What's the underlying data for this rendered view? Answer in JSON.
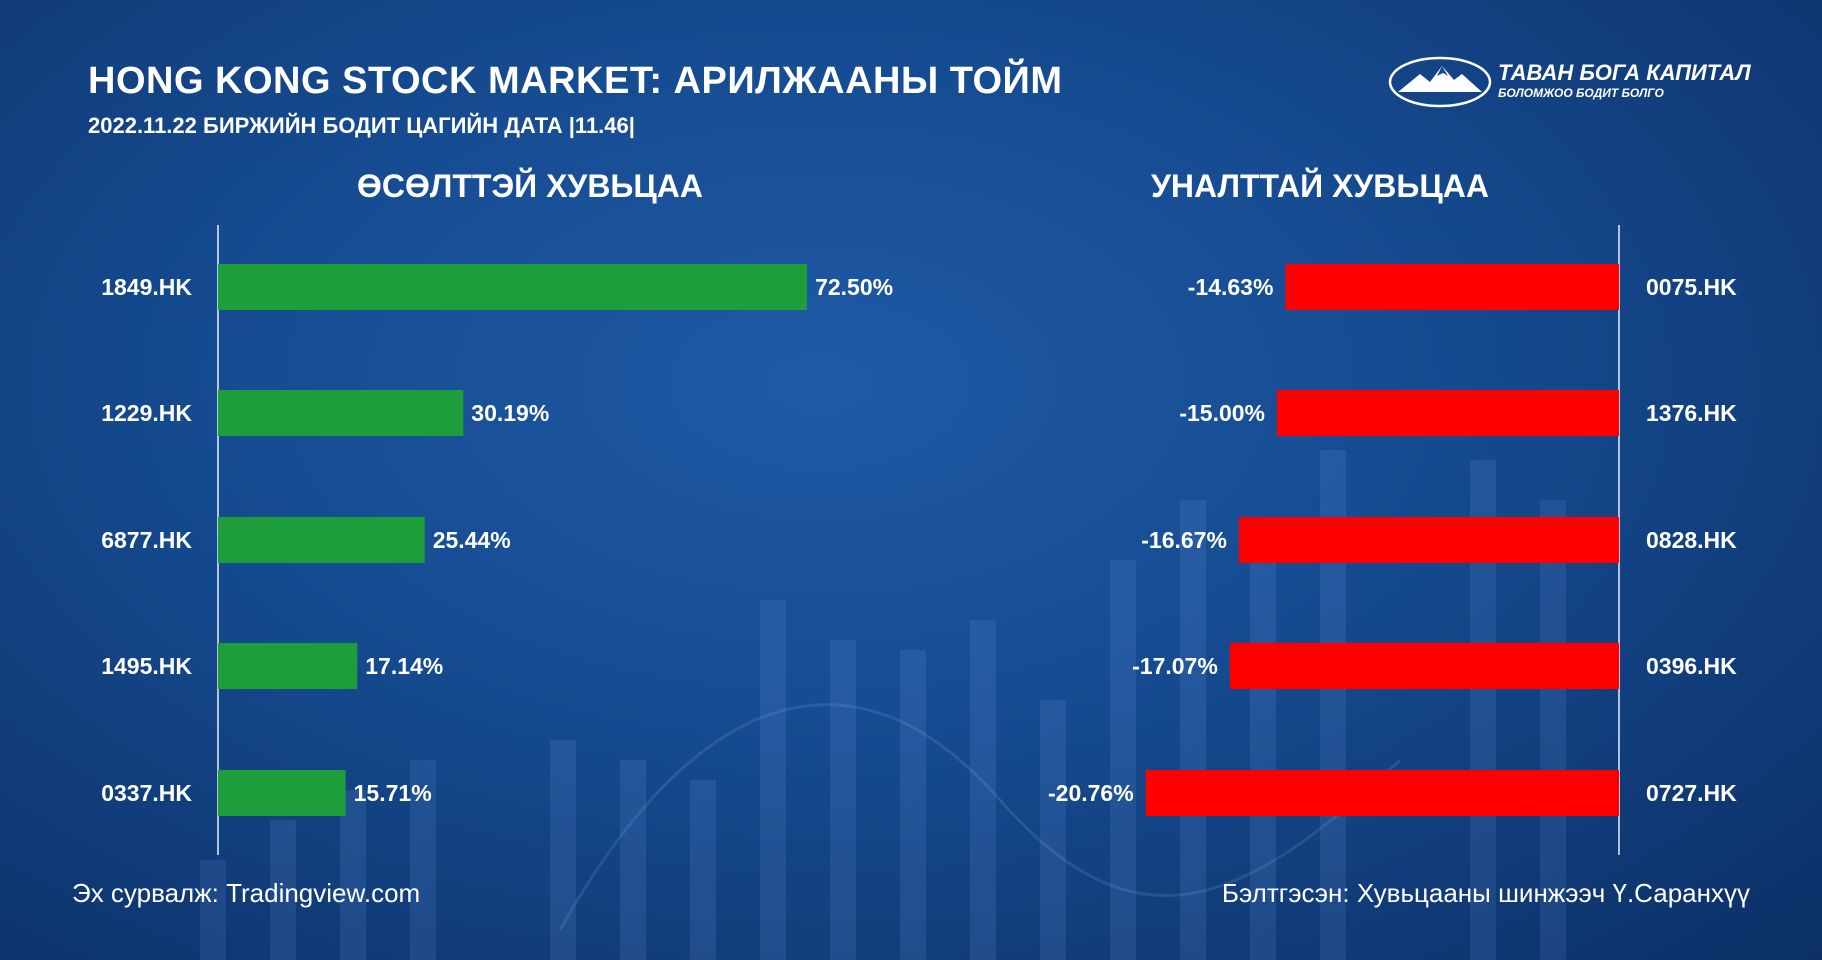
{
  "title": "HONG KONG STOCK MARKET: АРИЛЖААНЫ ТОЙМ",
  "subtitle": "2022.11.22 БИРЖИЙН БОДИТ ЦАГИЙН ДАТА |11.46|",
  "logo": {
    "name": "ТАВАН БОГА КАПИТАЛ",
    "tagline": "БОЛОМЖОО БОДИТ БОЛГО",
    "icon": "mountain-emblem-icon"
  },
  "footer": {
    "source": "Эх сурвалж: Tradingview.com",
    "prepared": "Бэлтгэсэн: Хувьцааны шинжээч Ү.Саранхүү"
  },
  "colors": {
    "gain": "#1e9e3a",
    "loss": "#ff0000",
    "background": "#154a8f"
  },
  "chart_data": [
    {
      "type": "bar",
      "orientation": "horizontal",
      "title": "ӨСӨЛТТЭЙ ХУВЬЦАА",
      "categories": [
        "1849.HK",
        "1229.HK",
        "6877.HK",
        "1495.HK",
        "0337.HK"
      ],
      "values": [
        72.5,
        30.19,
        25.44,
        17.14,
        15.71
      ],
      "labels": [
        "72.50%",
        "30.19%",
        "25.44%",
        "17.14%",
        "15.71%"
      ],
      "unit": "%",
      "xlim": [
        0,
        80
      ]
    },
    {
      "type": "bar",
      "orientation": "horizontal",
      "title": "УНАЛТТАЙ ХУВЬЦАА",
      "categories": [
        "0075.HK",
        "1376.HK",
        "0828.HK",
        "0396.HK",
        "0727.HK"
      ],
      "values": [
        -14.63,
        -15.0,
        -16.67,
        -17.07,
        -20.76
      ],
      "labels": [
        "-14.63%",
        "-15.00%",
        "-16.67%",
        "-17.07%",
        "-20.76%"
      ],
      "unit": "%",
      "xlim": [
        -25,
        0
      ]
    }
  ]
}
